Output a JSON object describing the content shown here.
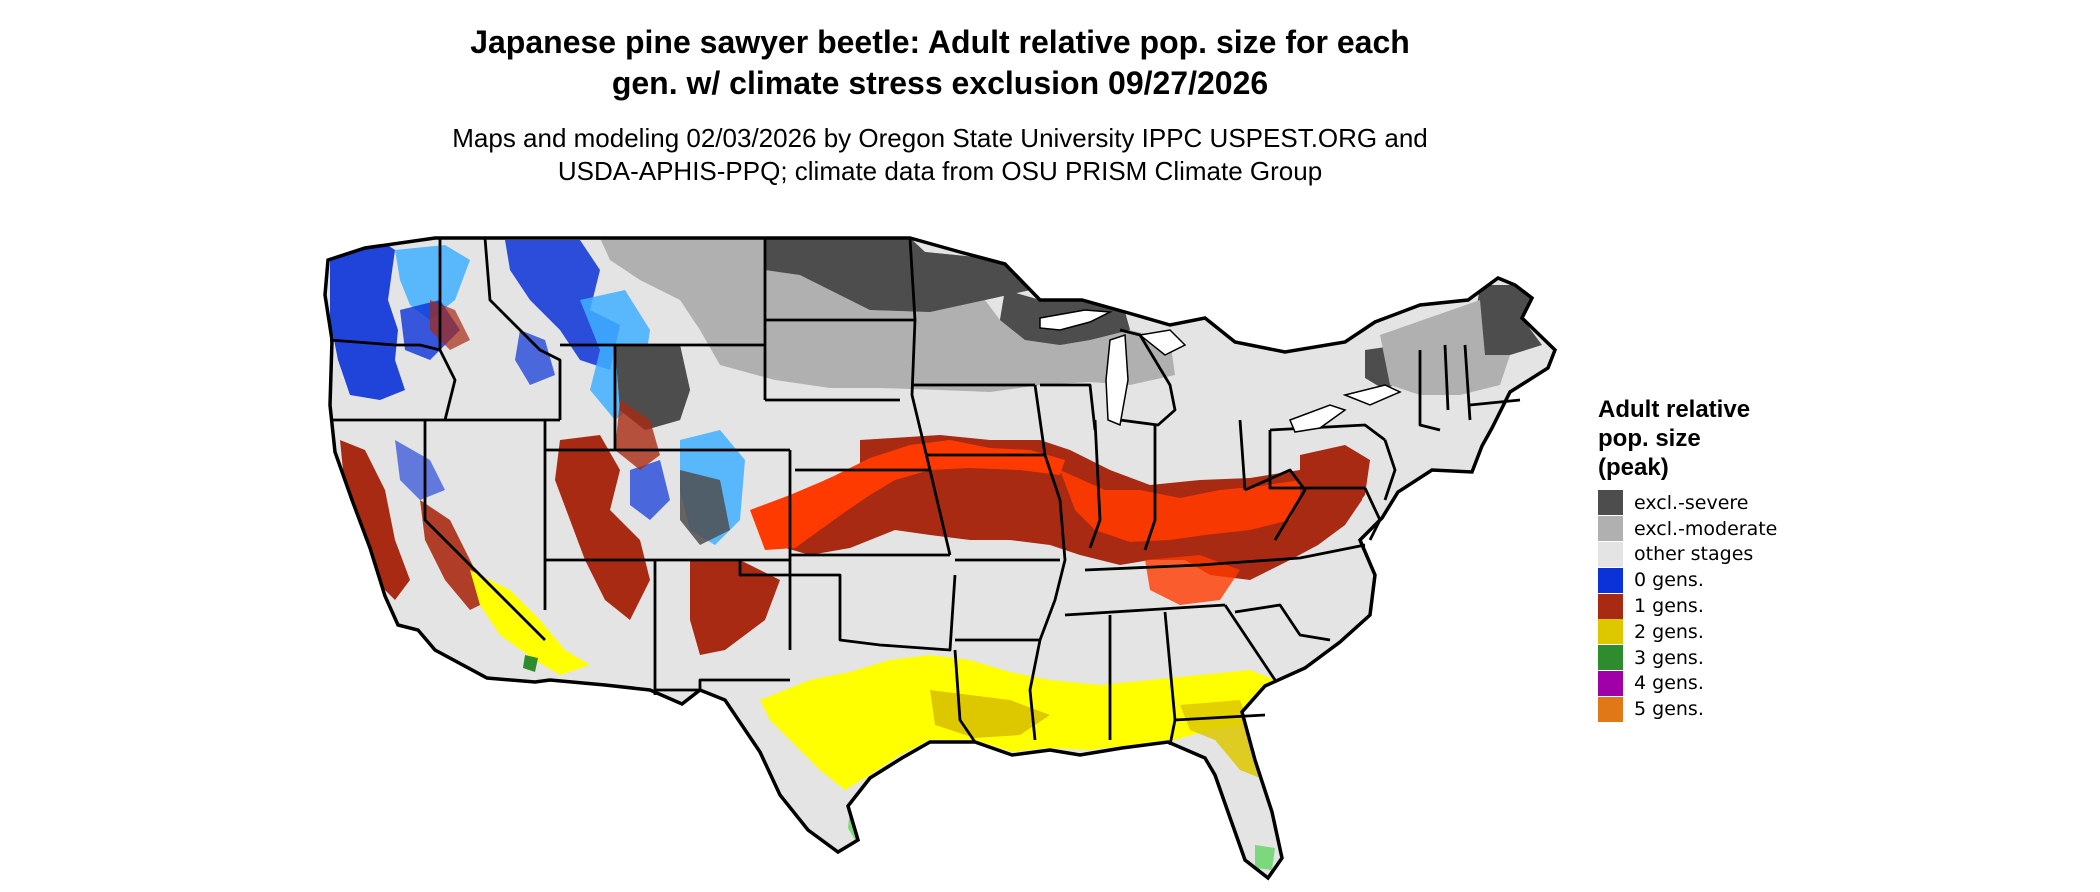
{
  "title_line1": "Japanese pine sawyer beetle: Adult relative pop. size for each",
  "title_line2": "gen. w/ climate stress exclusion 09/27/2026",
  "subtitle_line1": "Maps and modeling 02/03/2026 by Oregon State University IPPC USPEST.ORG and",
  "subtitle_line2": "USDA-APHIS-PPQ; climate data from OSU PRISM Climate Group",
  "legend": {
    "title_line1": "Adult relative",
    "title_line2": "pop. size",
    "title_line3": "(peak)",
    "items": [
      {
        "label": "excl.-severe",
        "color": "#4d4d4d"
      },
      {
        "label": "excl.-moderate",
        "color": "#b0b0b0"
      },
      {
        "label": "other stages",
        "color": "#e4e4e4"
      },
      {
        "label": "0 gens.",
        "color": "#0a32d8"
      },
      {
        "label": "1 gens.",
        "color": "#a82a12"
      },
      {
        "label": "2 gens.",
        "color": "#ddc800"
      },
      {
        "label": "3 gens.",
        "color": "#2e8b2e"
      },
      {
        "label": "4 gens.",
        "color": "#a000a8"
      },
      {
        "label": "5 gens.",
        "color": "#e07818"
      }
    ]
  },
  "map_colors": {
    "background": "#e4e4e4",
    "outline": "#000000",
    "high_one_gen": "#ff3a00",
    "light_blue": "#40b0ff",
    "yellow_bright": "#ffff00",
    "green_light": "#7cd87c"
  }
}
